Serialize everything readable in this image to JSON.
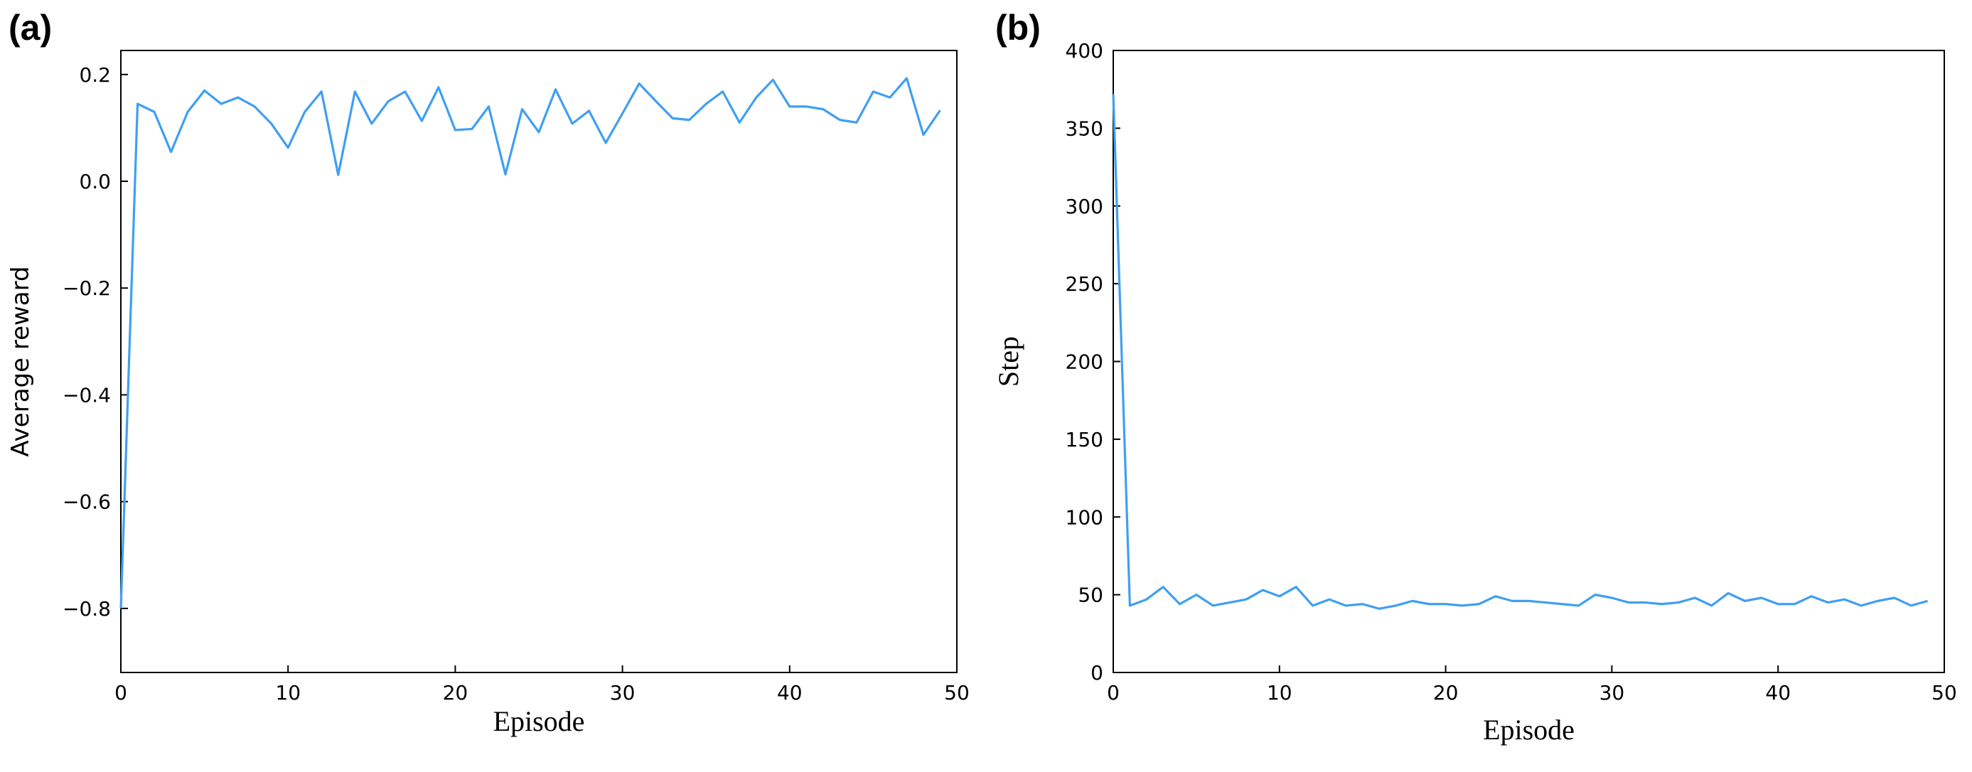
{
  "chart_data": [
    {
      "type": "line",
      "label": "(a)",
      "xlabel": "Episode",
      "ylabel": "Average reward",
      "x": [
        0,
        1,
        2,
        3,
        4,
        5,
        6,
        7,
        8,
        9,
        10,
        11,
        12,
        13,
        14,
        15,
        16,
        17,
        18,
        19,
        20,
        21,
        22,
        23,
        24,
        25,
        26,
        27,
        28,
        29,
        30,
        31,
        32,
        33,
        34,
        35,
        36,
        37,
        38,
        39,
        40,
        41,
        42,
        43,
        44,
        45,
        46,
        47,
        48,
        49
      ],
      "series": [
        {
          "color": "#3f9ff2",
          "values": [
            -0.8,
            0.145,
            0.13,
            0.055,
            0.13,
            0.17,
            0.145,
            0.157,
            0.14,
            0.108,
            0.063,
            0.13,
            0.168,
            0.012,
            0.168,
            0.108,
            0.15,
            0.168,
            0.113,
            0.176,
            0.096,
            0.098,
            0.14,
            0.013,
            0.135,
            0.092,
            0.172,
            0.108,
            0.132,
            0.072,
            0.127,
            0.183,
            0.15,
            0.118,
            0.115,
            0.145,
            0.168,
            0.11,
            0.157,
            0.19,
            0.14,
            0.14,
            0.135,
            0.115,
            0.11,
            0.168,
            0.157,
            0.193,
            0.087,
            0.133
          ]
        }
      ],
      "xlim": [
        0,
        50
      ],
      "xticks": [
        0,
        10,
        20,
        30,
        40,
        50
      ],
      "ylim": [
        -0.92,
        0.245
      ],
      "yticks": [
        {
          "value": -0.8,
          "label": "−0.8"
        },
        {
          "value": -0.6,
          "label": "−0.6"
        },
        {
          "value": -0.4,
          "label": "−0.4"
        },
        {
          "value": -0.2,
          "label": "−0.2"
        },
        {
          "value": 0,
          "label": "0.0"
        },
        0.2
      ]
    },
    {
      "type": "line",
      "label": "(b)",
      "xlabel": "Episode",
      "ylabel": "Step",
      "x": [
        0,
        1,
        2,
        3,
        4,
        5,
        6,
        7,
        8,
        9,
        10,
        11,
        12,
        13,
        14,
        15,
        16,
        17,
        18,
        19,
        20,
        21,
        22,
        23,
        24,
        25,
        26,
        27,
        28,
        29,
        30,
        31,
        32,
        33,
        34,
        35,
        36,
        37,
        38,
        39,
        40,
        41,
        42,
        43,
        44,
        45,
        46,
        47,
        48,
        49
      ],
      "series": [
        {
          "color": "#3f9ff2",
          "values": [
            372,
            43,
            47,
            55,
            44,
            50,
            43,
            45,
            47,
            53,
            49,
            55,
            43,
            47,
            43,
            44,
            41,
            43,
            46,
            44,
            44,
            43,
            44,
            49,
            46,
            46,
            45,
            44,
            43,
            50,
            48,
            45,
            45,
            44,
            45,
            48,
            43,
            51,
            46,
            48,
            44,
            44,
            49,
            45,
            47,
            43,
            46,
            48,
            43,
            46
          ]
        }
      ],
      "xlim": [
        0,
        50
      ],
      "xticks": [
        0,
        10,
        20,
        30,
        40,
        50
      ],
      "ylim": [
        0,
        400
      ],
      "yticks": [
        0,
        50,
        100,
        150,
        200,
        250,
        300,
        350,
        400
      ]
    }
  ]
}
